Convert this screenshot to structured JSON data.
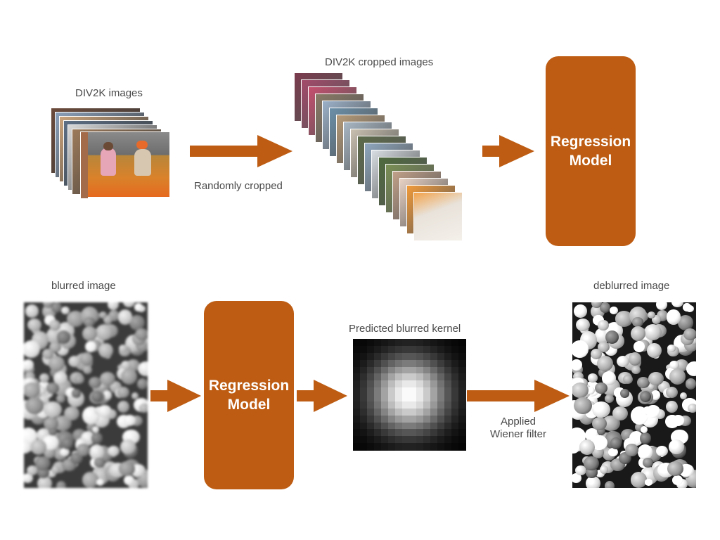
{
  "colors": {
    "accent": "#bd5c12",
    "text": "#4a4a4a"
  },
  "top_row": {
    "div2k_label": "DIV2K images",
    "randomly_cropped_label": "Randomly cropped",
    "cropped_label": "DIV2K cropped images",
    "model_label": "Regression\nModel"
  },
  "bottom_row": {
    "blurred_label": "blurred image",
    "model_label": "Regression\nModel",
    "kernel_label": "Predicted blurred kernel",
    "wiener_label": "Applied\nWiener filter",
    "deblurred_label": "deblurred image"
  }
}
